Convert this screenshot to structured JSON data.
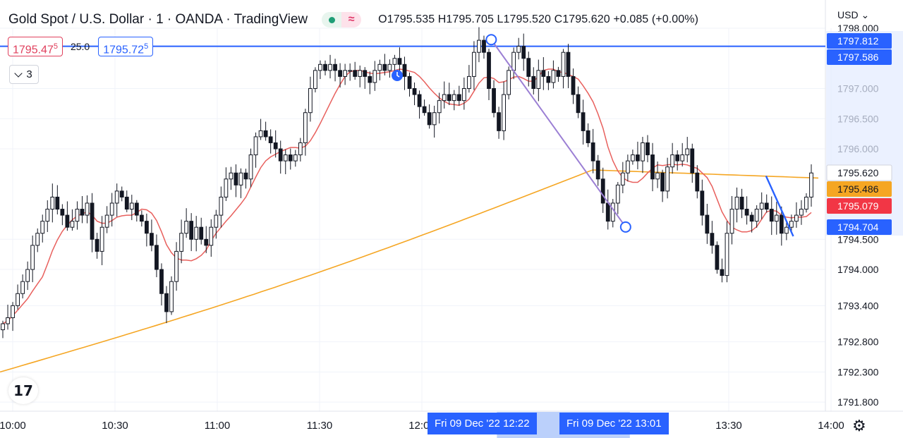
{
  "header": {
    "title": "Gold Spot / U.S. Dollar · 1 · OANDA · TradingView",
    "ohlc": "O1795.535  H1795.705  L1795.520  C1795.620  +0.085 (+0.00%)"
  },
  "quote": {
    "sell_main": "1795.47",
    "sell_sup": "5",
    "spread": "25.0",
    "buy_main": "1795.72",
    "buy_sup": "5"
  },
  "indicators_toggle": "3",
  "currency_menu": "USD",
  "time_badges": [
    "Fri 09 Dec '22   12:22",
    "Fri 09 Dec '22   13:01"
  ],
  "colors": {
    "up": "#131722",
    "down": "#131722",
    "ma_fast": "#e8605d",
    "ma_slow": "#f5a623",
    "accent": "#2962ff",
    "drawing": "#9b7fd4"
  },
  "chart_data": {
    "type": "candlestick",
    "ylim": [
      1791.65,
      1798.0
    ],
    "x_ticks": [
      "10:00",
      "10:30",
      "11:00",
      "11:30",
      "12:00",
      "13:30",
      "14:00"
    ],
    "y_ticks": [
      "1798.000",
      "1797.000",
      "1796.500",
      "1796.000",
      "1794.500",
      "1794.000",
      "1793.400",
      "1792.800",
      "1792.300",
      "1791.800"
    ],
    "price_labels": [
      {
        "value": "1797.812",
        "color": "#2962ff"
      },
      {
        "value": "1797.586",
        "color": "#2962ff"
      },
      {
        "value": "1795.620",
        "color": "#ffffff"
      },
      {
        "value": "1795.486",
        "color": "#f5a623"
      },
      {
        "value": "1795.079",
        "color": "#f23645"
      },
      {
        "value": "1794.704",
        "color": "#2962ff"
      }
    ],
    "horizontal_line": 1797.7,
    "trend_line": [
      [
        "12:22",
        1797.81
      ],
      [
        "13:01",
        1794.704
      ]
    ],
    "blue_segment": [
      [
        "13:43",
        1795.55
      ],
      [
        "13:51",
        1794.55
      ]
    ],
    "closes": [
      1793.1,
      1793.2,
      1793.4,
      1793.6,
      1793.8,
      1794.0,
      1794.4,
      1794.6,
      1794.8,
      1795.0,
      1795.2,
      1795.0,
      1794.9,
      1794.7,
      1794.8,
      1795.0,
      1794.9,
      1795.1,
      1794.5,
      1794.3,
      1794.7,
      1794.9,
      1795.1,
      1795.3,
      1795.2,
      1795.0,
      1795.1,
      1794.9,
      1794.8,
      1794.6,
      1794.4,
      1794.0,
      1793.6,
      1793.3,
      1793.8,
      1794.3,
      1794.6,
      1794.8,
      1794.5,
      1794.7,
      1794.5,
      1794.4,
      1794.7,
      1794.9,
      1795.2,
      1795.5,
      1795.6,
      1795.4,
      1795.6,
      1795.5,
      1795.9,
      1796.2,
      1796.3,
      1796.2,
      1796.1,
      1796.0,
      1795.8,
      1795.9,
      1795.8,
      1795.9,
      1796.1,
      1796.6,
      1797.0,
      1797.3,
      1797.4,
      1797.3,
      1797.4,
      1797.3,
      1797.2,
      1797.3,
      1797.3,
      1797.2,
      1797.3,
      1797.2,
      1797.1,
      1797.3,
      1797.4,
      1797.3,
      1797.4,
      1797.5,
      1797.4,
      1797.2,
      1797.0,
      1796.9,
      1796.7,
      1796.6,
      1796.4,
      1796.6,
      1796.8,
      1796.9,
      1796.8,
      1796.9,
      1796.8,
      1797.0,
      1797.2,
      1797.6,
      1797.8,
      1797.6,
      1797.0,
      1796.6,
      1796.3,
      1796.9,
      1797.3,
      1797.6,
      1797.7,
      1797.5,
      1797.2,
      1797.0,
      1797.3,
      1797.2,
      1797.1,
      1797.3,
      1797.2,
      1797.6,
      1797.2,
      1796.9,
      1796.6,
      1796.3,
      1796.1,
      1795.8,
      1795.5,
      1795.1,
      1794.8,
      1795.1,
      1795.4,
      1795.6,
      1795.8,
      1795.9,
      1795.8,
      1796.1,
      1795.9,
      1795.5,
      1795.6,
      1795.3,
      1795.7,
      1795.9,
      1795.8,
      1795.9,
      1796.0,
      1795.6,
      1795.3,
      1794.9,
      1794.6,
      1794.4,
      1794.0,
      1793.9,
      1794.6,
      1795.0,
      1795.2,
      1795.0,
      1794.9,
      1794.8,
      1795.0,
      1795.1,
      1795.0,
      1794.8,
      1794.9,
      1794.6,
      1794.7,
      1794.8,
      1794.9,
      1795.0,
      1795.2,
      1795.6
    ]
  }
}
